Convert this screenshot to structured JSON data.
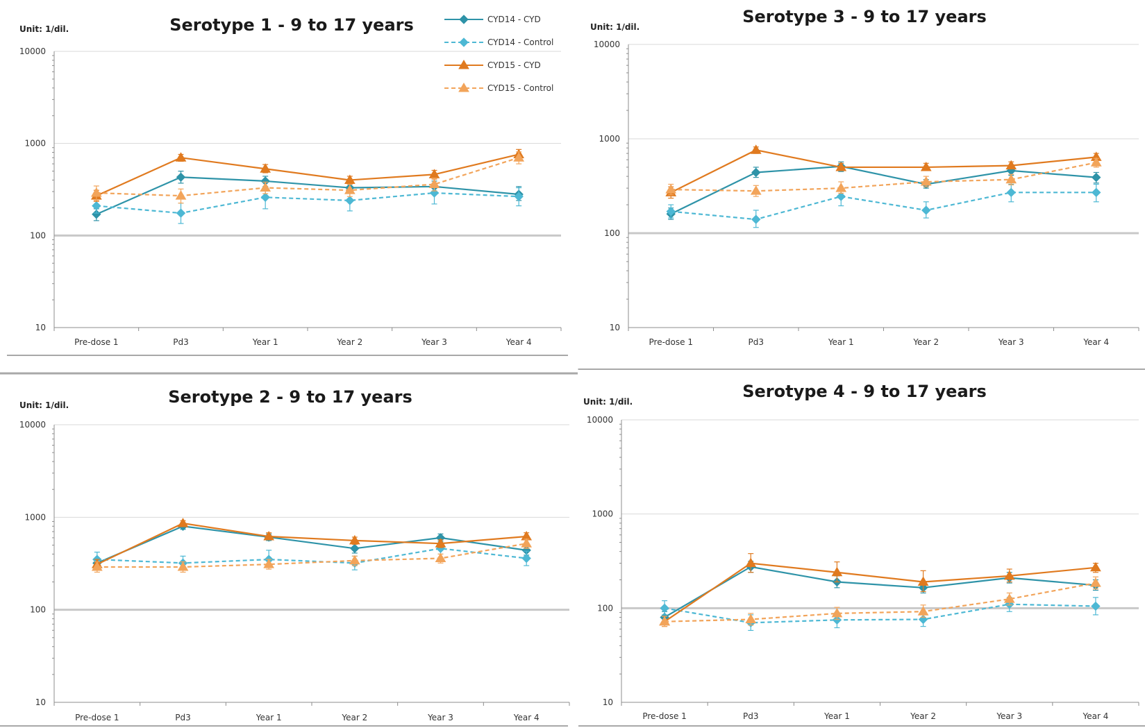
{
  "colors": {
    "cyd14": "#2e93a8",
    "cyd14_control": "#4db8d4",
    "cyd15": "#e07a1f",
    "cyd15_control": "#f2a45a",
    "gridline": "#d8d8d8",
    "threshold": "#c8c8c8",
    "axis": "#8c8c8c",
    "separator": "#a8a8a8"
  },
  "chart_data": [
    {
      "type": "line",
      "title": "Serotype 1 - 9 to 17 years",
      "unit": "Unit: 1/dil.",
      "y_scale": "log",
      "ylim": [
        10,
        10000
      ],
      "yticks": [
        "10",
        "100",
        "1000",
        "10000"
      ],
      "threshold": 100,
      "categories": [
        "Pre-dose 1",
        "Pd3",
        "Year 1",
        "Year 2",
        "Year 3",
        "Year 4"
      ],
      "legend": "top-right",
      "series": [
        {
          "name": "CYD14 - CYD",
          "marker": "diamond",
          "dashed": false,
          "color_key": "cyd14",
          "values": [
            170,
            430,
            390,
            330,
            340,
            280
          ],
          "err_low": [
            145,
            370,
            340,
            290,
            300,
            240
          ],
          "err_high": [
            195,
            500,
            440,
            380,
            390,
            340
          ]
        },
        {
          "name": "CYD14 - Control",
          "marker": "diamond",
          "dashed": true,
          "color_key": "cyd14_control",
          "values": [
            210,
            175,
            260,
            240,
            290,
            265
          ],
          "err_low": [
            175,
            135,
            195,
            185,
            220,
            210
          ],
          "err_high": [
            250,
            225,
            335,
            300,
            370,
            330
          ]
        },
        {
          "name": "CYD15 - CYD",
          "marker": "triangle",
          "dashed": false,
          "color_key": "cyd15",
          "values": [
            270,
            700,
            530,
            400,
            460,
            760
          ],
          "err_low": [
            235,
            640,
            480,
            360,
            410,
            660
          ],
          "err_high": [
            310,
            760,
            590,
            440,
            510,
            860
          ]
        },
        {
          "name": "CYD15 - Control",
          "marker": "triangle",
          "dashed": true,
          "color_key": "cyd15_control",
          "values": [
            290,
            270,
            330,
            310,
            360,
            700
          ],
          "err_low": [
            240,
            225,
            285,
            265,
            305,
            600
          ],
          "err_high": [
            345,
            320,
            380,
            360,
            420,
            810
          ]
        }
      ]
    },
    {
      "type": "line",
      "title": "Serotype 3 - 9 to 17 years",
      "unit": "Unit: 1/dil.",
      "y_scale": "log",
      "ylim": [
        10,
        10000
      ],
      "yticks": [
        "10",
        "100",
        "1000",
        "10000"
      ],
      "threshold": 100,
      "categories": [
        "Pre-dose 1",
        "Pd3",
        "Year 1",
        "Year 2",
        "Year 3",
        "Year 4"
      ],
      "series": [
        {
          "name": "CYD14 - CYD",
          "marker": "diamond",
          "dashed": false,
          "color_key": "cyd14",
          "values": [
            160,
            440,
            510,
            330,
            460,
            390
          ],
          "err_low": [
            140,
            390,
            450,
            300,
            410,
            340
          ],
          "err_high": [
            185,
            500,
            570,
            370,
            510,
            440
          ]
        },
        {
          "name": "CYD14 - Control",
          "marker": "diamond",
          "dashed": true,
          "color_key": "cyd14_control",
          "values": [
            170,
            140,
            245,
            175,
            270,
            270
          ],
          "err_low": [
            145,
            115,
            195,
            145,
            215,
            215
          ],
          "err_high": [
            200,
            175,
            300,
            215,
            330,
            330
          ]
        },
        {
          "name": "CYD15 - CYD",
          "marker": "triangle",
          "dashed": false,
          "color_key": "cyd15",
          "values": [
            270,
            760,
            500,
            500,
            520,
            640
          ],
          "err_low": [
            235,
            700,
            460,
            460,
            480,
            590
          ],
          "err_high": [
            310,
            820,
            550,
            550,
            570,
            700
          ]
        },
        {
          "name": "CYD15 - Control",
          "marker": "triangle",
          "dashed": true,
          "color_key": "cyd15_control",
          "values": [
            290,
            280,
            300,
            350,
            370,
            560
          ],
          "err_low": [
            255,
            245,
            265,
            310,
            325,
            500
          ],
          "err_high": [
            330,
            320,
            350,
            400,
            420,
            620
          ]
        }
      ]
    },
    {
      "type": "line",
      "title": "Serotype 2 - 9 to 17 years",
      "unit": "Unit: 1/dil.",
      "y_scale": "log",
      "ylim": [
        10,
        10000
      ],
      "yticks": [
        "10",
        "100",
        "1000",
        "10000"
      ],
      "threshold": 100,
      "categories": [
        "Pre-dose 1",
        "Pd3",
        "Year 1",
        "Year 2",
        "Year 3",
        "Year 4"
      ],
      "series": [
        {
          "name": "CYD14 - CYD",
          "marker": "diamond",
          "dashed": false,
          "color_key": "cyd14",
          "values": [
            320,
            800,
            610,
            460,
            600,
            440
          ],
          "err_low": [
            280,
            740,
            560,
            410,
            550,
            390
          ],
          "err_high": [
            360,
            860,
            660,
            520,
            660,
            500
          ]
        },
        {
          "name": "CYD14 - Control",
          "marker": "diamond",
          "dashed": true,
          "color_key": "cyd14_control",
          "values": [
            350,
            320,
            350,
            320,
            460,
            360
          ],
          "err_low": [
            295,
            275,
            295,
            270,
            400,
            300
          ],
          "err_high": [
            420,
            380,
            440,
            380,
            530,
            430
          ]
        },
        {
          "name": "CYD15 - CYD",
          "marker": "triangle",
          "dashed": false,
          "color_key": "cyd15",
          "values": [
            310,
            860,
            620,
            560,
            520,
            620
          ],
          "err_low": [
            275,
            800,
            570,
            510,
            470,
            570
          ],
          "err_high": [
            350,
            920,
            680,
            610,
            570,
            680
          ]
        },
        {
          "name": "CYD15 - Control",
          "marker": "triangle",
          "dashed": true,
          "color_key": "cyd15_control",
          "values": [
            290,
            290,
            310,
            340,
            360,
            520
          ],
          "err_low": [
            255,
            255,
            275,
            300,
            320,
            460
          ],
          "err_high": [
            330,
            330,
            350,
            380,
            400,
            580
          ]
        }
      ]
    },
    {
      "type": "line",
      "title": "Serotype 4 - 9 to 17 years",
      "unit": "Unit: 1/dil.",
      "y_scale": "log",
      "ylim": [
        10,
        10000
      ],
      "yticks": [
        "10",
        "100",
        "1000",
        "10000"
      ],
      "threshold": 100,
      "categories": [
        "Pre-dose 1",
        "Pd3",
        "Year 1",
        "Year 2",
        "Year 3",
        "Year 4"
      ],
      "series": [
        {
          "name": "CYD14 - CYD",
          "marker": "diamond",
          "dashed": false,
          "color_key": "cyd14",
          "values": [
            80,
            275,
            190,
            165,
            210,
            175
          ],
          "err_low": [
            70,
            240,
            165,
            145,
            185,
            155
          ],
          "err_high": [
            92,
            315,
            220,
            190,
            240,
            200
          ]
        },
        {
          "name": "CYD14 - Control",
          "marker": "diamond",
          "dashed": true,
          "color_key": "cyd14_control",
          "values": [
            100,
            70,
            75,
            76,
            110,
            105
          ],
          "err_low": [
            85,
            58,
            62,
            64,
            92,
            85
          ],
          "err_high": [
            120,
            85,
            90,
            92,
            130,
            130
          ]
        },
        {
          "name": "CYD15 - CYD",
          "marker": "triangle",
          "dashed": false,
          "color_key": "cyd15",
          "values": [
            72,
            300,
            240,
            190,
            220,
            270
          ],
          "err_low": [
            64,
            240,
            190,
            150,
            190,
            240
          ],
          "err_high": [
            82,
            380,
            310,
            250,
            260,
            300
          ]
        },
        {
          "name": "CYD15 - Control",
          "marker": "triangle",
          "dashed": true,
          "color_key": "cyd15_control",
          "values": [
            72,
            76,
            88,
            92,
            125,
            185
          ],
          "err_low": [
            64,
            66,
            76,
            80,
            108,
            160
          ],
          "err_high": [
            82,
            88,
            102,
            108,
            145,
            215
          ]
        }
      ]
    }
  ]
}
